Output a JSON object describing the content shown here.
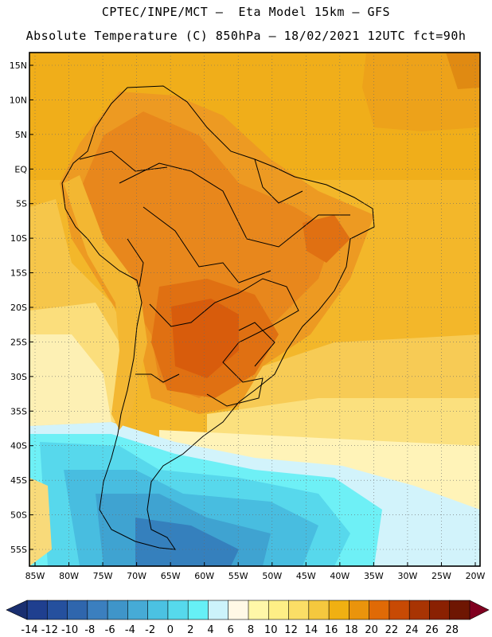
{
  "header": {
    "title_line1": "CPTEC/INPE/MCT –  Eta Model 15km – GFS",
    "title_line2": "Absolute Temperature (C) 850hPa – 18/02/2021 12UTC fct=90h"
  },
  "map": {
    "region": "South America",
    "variable": "Absolute Temperature 850hPa",
    "units": "C",
    "lat_labels": [
      "15N",
      "10N",
      "5N",
      "EQ",
      "5S",
      "10S",
      "15S",
      "20S",
      "25S",
      "30S",
      "35S",
      "40S",
      "45S",
      "50S",
      "55S"
    ],
    "lon_labels": [
      "85W",
      "80W",
      "75W",
      "70W",
      "65W",
      "60W",
      "55W",
      "50W",
      "45W",
      "40W",
      "35W",
      "30W",
      "25W",
      "20W"
    ]
  },
  "colorbar": {
    "labels": [
      "-14",
      "-12",
      "-10",
      "-8",
      "-6",
      "-4",
      "-2",
      "0",
      "2",
      "4",
      "6",
      "8",
      "10",
      "12",
      "14",
      "16",
      "18",
      "20",
      "22",
      "24",
      "26",
      "28"
    ],
    "colors": [
      "#1f3f8f",
      "#25509e",
      "#2f66ad",
      "#3b7fbf",
      "#3f95c9",
      "#46abd6",
      "#4bc2e2",
      "#56d9ec",
      "#66f0f6",
      "#ccf3fb",
      "#fff8e6",
      "#fff7a8",
      "#feef86",
      "#fbde66",
      "#f5c83e",
      "#f0b012",
      "#ea940c",
      "#e06a06",
      "#c84a04",
      "#a83403",
      "#8a2102",
      "#6e1602"
    ],
    "min_arrow_color": "#1a2f70",
    "max_arrow_color": "#800020"
  }
}
